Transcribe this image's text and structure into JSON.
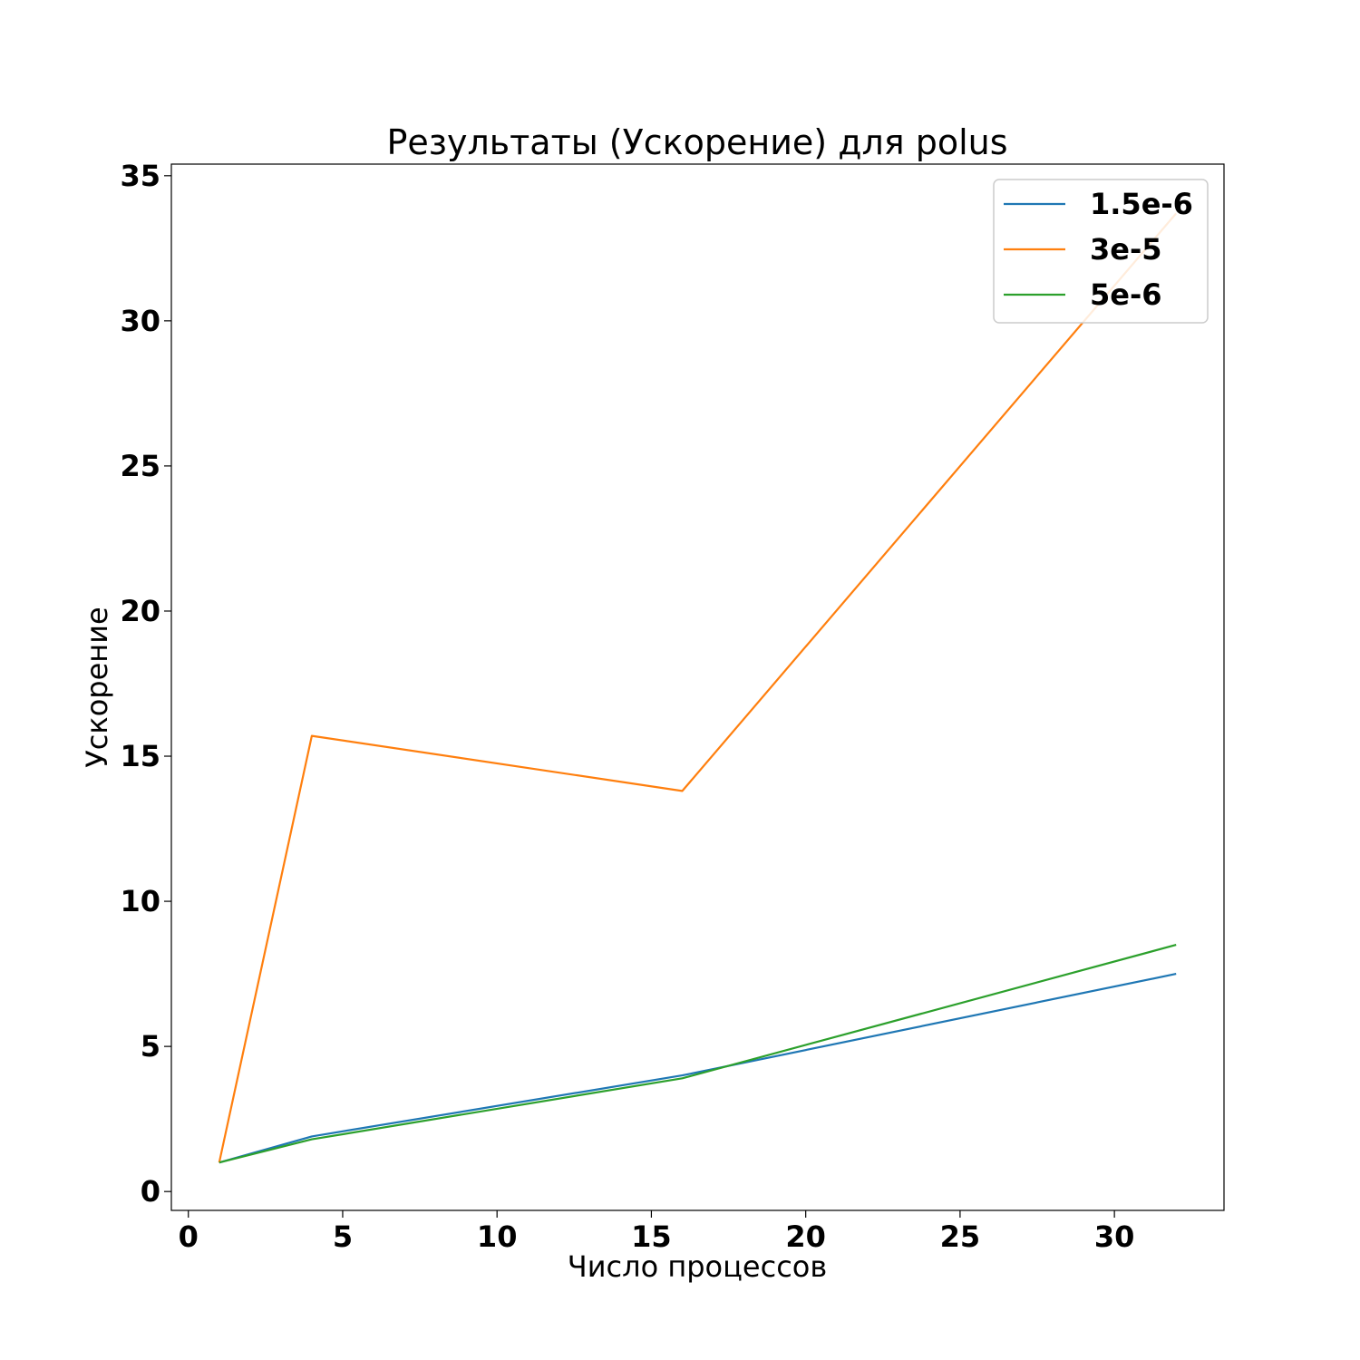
{
  "chart_data": {
    "type": "line",
    "title": "Результаты (Ускорение) для polus",
    "xlabel": "Число процессов",
    "ylabel": "Ускорение",
    "xlim": [
      -0.55,
      33.55
    ],
    "ylim": [
      -0.65,
      35.4
    ],
    "x_ticks": [
      0,
      5,
      10,
      15,
      20,
      25,
      30
    ],
    "y_ticks": [
      0,
      5,
      10,
      15,
      20,
      25,
      30,
      35
    ],
    "grid": false,
    "legend_position": "top-right",
    "x": [
      1,
      4,
      16,
      32
    ],
    "series": [
      {
        "name": "1.5e-6",
        "color": "#1f77b4",
        "values": [
          1.0,
          1.9,
          4.0,
          7.5
        ]
      },
      {
        "name": "3e-5",
        "color": "#ff7f0e",
        "values": [
          1.0,
          15.7,
          13.8,
          33.7
        ]
      },
      {
        "name": "5e-6",
        "color": "#2ca02c",
        "values": [
          1.0,
          1.8,
          3.9,
          8.5
        ]
      }
    ]
  }
}
